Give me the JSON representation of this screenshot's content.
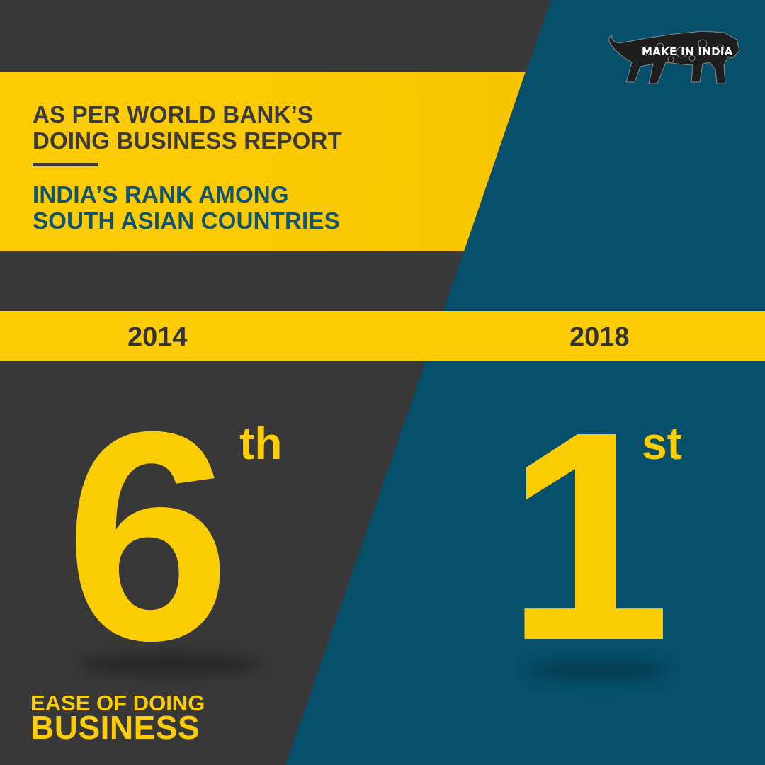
{
  "header": {
    "headline": "AS PER WORLD BANK’S\nDOING BUSINESS REPORT",
    "subhead": "INDIA’S RANK AMONG\nSOUTH ASIAN COUNTRIES"
  },
  "logo": {
    "text": "MAKE IN INDIA",
    "icon": "lion-logo-icon"
  },
  "comparison": {
    "left": {
      "year": "2014",
      "rank": "6",
      "suffix": "th"
    },
    "right": {
      "year": "2018",
      "rank": "1",
      "suffix": "st"
    }
  },
  "footer": {
    "line1": "EASE OF DOING",
    "line2": "BUSINESS"
  },
  "colors": {
    "yellow": "#ffcd05",
    "dark": "#383838",
    "teal": "#06506b"
  }
}
